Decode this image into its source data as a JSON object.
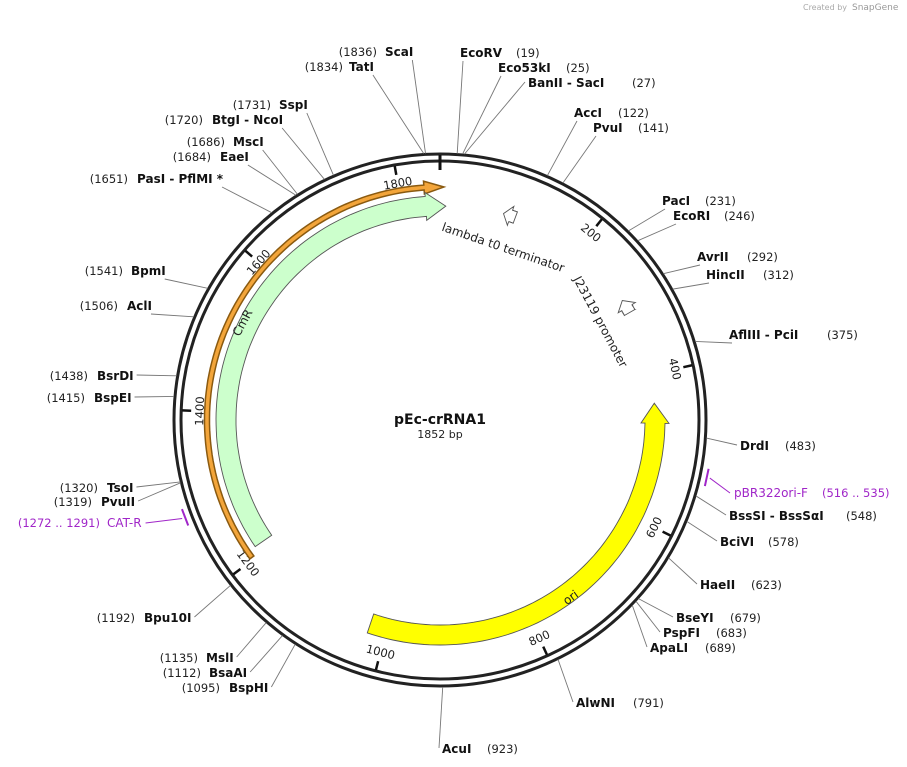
{
  "watermark": {
    "prefix": "Created by",
    "brand": "SnapGene"
  },
  "plasmid": {
    "name": "pEc-crRNA1",
    "length": {
      "value": 1852,
      "label": "1852 bp"
    }
  },
  "ruler": {
    "ticks": [
      200,
      400,
      600,
      800,
      1000,
      1200,
      1400,
      1600,
      1800
    ]
  },
  "features": [
    {
      "start": 1203,
      "end": 5,
      "direction": "cw",
      "color": "#f3a53a"
    },
    {
      "name": "CmR",
      "start": 1212,
      "end": 8,
      "direction": "cw",
      "color": "#ccffcc"
    },
    {
      "name": "ori",
      "start": 1023,
      "end": 440,
      "direction": "ccw",
      "color": "#ffff00"
    },
    {
      "name": "lambda t0 terminator",
      "start": 105,
      "end": 88,
      "direction": "ccw",
      "color": "#ffffff"
    },
    {
      "name": "J23119 promoter",
      "start": 311,
      "end": 292,
      "direction": "ccw",
      "color": "#ffffff"
    }
  ],
  "enzymes": [
    {
      "name": "ScaI",
      "site": {
        "value": 1836,
        "label": "(1836)"
      }
    },
    {
      "name": "TatI",
      "site": {
        "value": 1834,
        "label": "(1834)"
      }
    },
    {
      "name": "SspI",
      "site": {
        "value": 1731,
        "label": "(1731)"
      }
    },
    {
      "name": "BtgI - NcoI",
      "site": {
        "value": 1720,
        "label": "(1720)"
      }
    },
    {
      "name": "MscI",
      "site": {
        "value": 1686,
        "label": "(1686)"
      }
    },
    {
      "name": "EaeI",
      "site": {
        "value": 1684,
        "label": "(1684)"
      }
    },
    {
      "name": "PasI - PflMI *",
      "site": {
        "value": 1651,
        "label": "(1651)"
      }
    },
    {
      "name": "BpmI",
      "site": {
        "value": 1541,
        "label": "(1541)"
      }
    },
    {
      "name": "AclI",
      "site": {
        "value": 1506,
        "label": "(1506)"
      }
    },
    {
      "name": "BsrDI",
      "site": {
        "value": 1438,
        "label": "(1438)"
      }
    },
    {
      "name": "BspEI",
      "site": {
        "value": 1415,
        "label": "(1415)"
      }
    },
    {
      "name": "TsoI",
      "site": {
        "value": 1320,
        "label": "(1320)"
      }
    },
    {
      "name": "PvuII",
      "site": {
        "value": 1319,
        "label": "(1319)"
      }
    },
    {
      "name": "Bpu10I",
      "site": {
        "value": 1192,
        "label": "(1192)"
      }
    },
    {
      "name": "MslI",
      "site": {
        "value": 1135,
        "label": "(1135)"
      }
    },
    {
      "name": "BsaAI",
      "site": {
        "value": 1112,
        "label": "(1112)"
      }
    },
    {
      "name": "BspHI",
      "site": {
        "value": 1095,
        "label": "(1095)"
      }
    },
    {
      "name": "EcoRV",
      "site": {
        "value": 19,
        "label": "(19)"
      }
    },
    {
      "name": "Eco53kI",
      "site": {
        "value": 25,
        "label": "(25)"
      }
    },
    {
      "name": "BanII - SacI",
      "site": {
        "value": 27,
        "label": "(27)"
      }
    },
    {
      "name": "AccI",
      "site": {
        "value": 122,
        "label": "(122)"
      }
    },
    {
      "name": "PvuI",
      "site": {
        "value": 141,
        "label": "(141)"
      }
    },
    {
      "name": "PacI",
      "site": {
        "value": 231,
        "label": "(231)"
      }
    },
    {
      "name": "EcoRI",
      "site": {
        "value": 246,
        "label": "(246)"
      }
    },
    {
      "name": "AvrII",
      "site": {
        "value": 292,
        "label": "(292)"
      }
    },
    {
      "name": "HincII",
      "site": {
        "value": 312,
        "label": "(312)"
      }
    },
    {
      "name": "AflIII - PciI",
      "site": {
        "value": 375,
        "label": "(375)"
      }
    },
    {
      "name": "DrdI",
      "site": {
        "value": 483,
        "label": "(483)"
      }
    },
    {
      "name": "BssSI - BssSαI",
      "site": {
        "value": 548,
        "label": "(548)"
      }
    },
    {
      "name": "BciVI",
      "site": {
        "value": 578,
        "label": "(578)"
      }
    },
    {
      "name": "HaeII",
      "site": {
        "value": 623,
        "label": "(623)"
      }
    },
    {
      "name": "BseYI",
      "site": {
        "value": 679,
        "label": "(679)"
      }
    },
    {
      "name": "PspFI",
      "site": {
        "value": 683,
        "label": "(683)"
      }
    },
    {
      "name": "ApaLI",
      "site": {
        "value": 689,
        "label": "(689)"
      }
    },
    {
      "name": "AlwNI",
      "site": {
        "value": 791,
        "label": "(791)"
      }
    },
    {
      "name": "AcuI",
      "site": {
        "value": 923,
        "label": "(923)"
      }
    }
  ],
  "primers": [
    {
      "name": "pBR322ori-F",
      "start": 516,
      "end": 535,
      "location": "(516 .. 535)"
    },
    {
      "name": "CAT-R",
      "start": 1272,
      "end": 1291,
      "location": "(1272 .. 1291)"
    }
  ]
}
